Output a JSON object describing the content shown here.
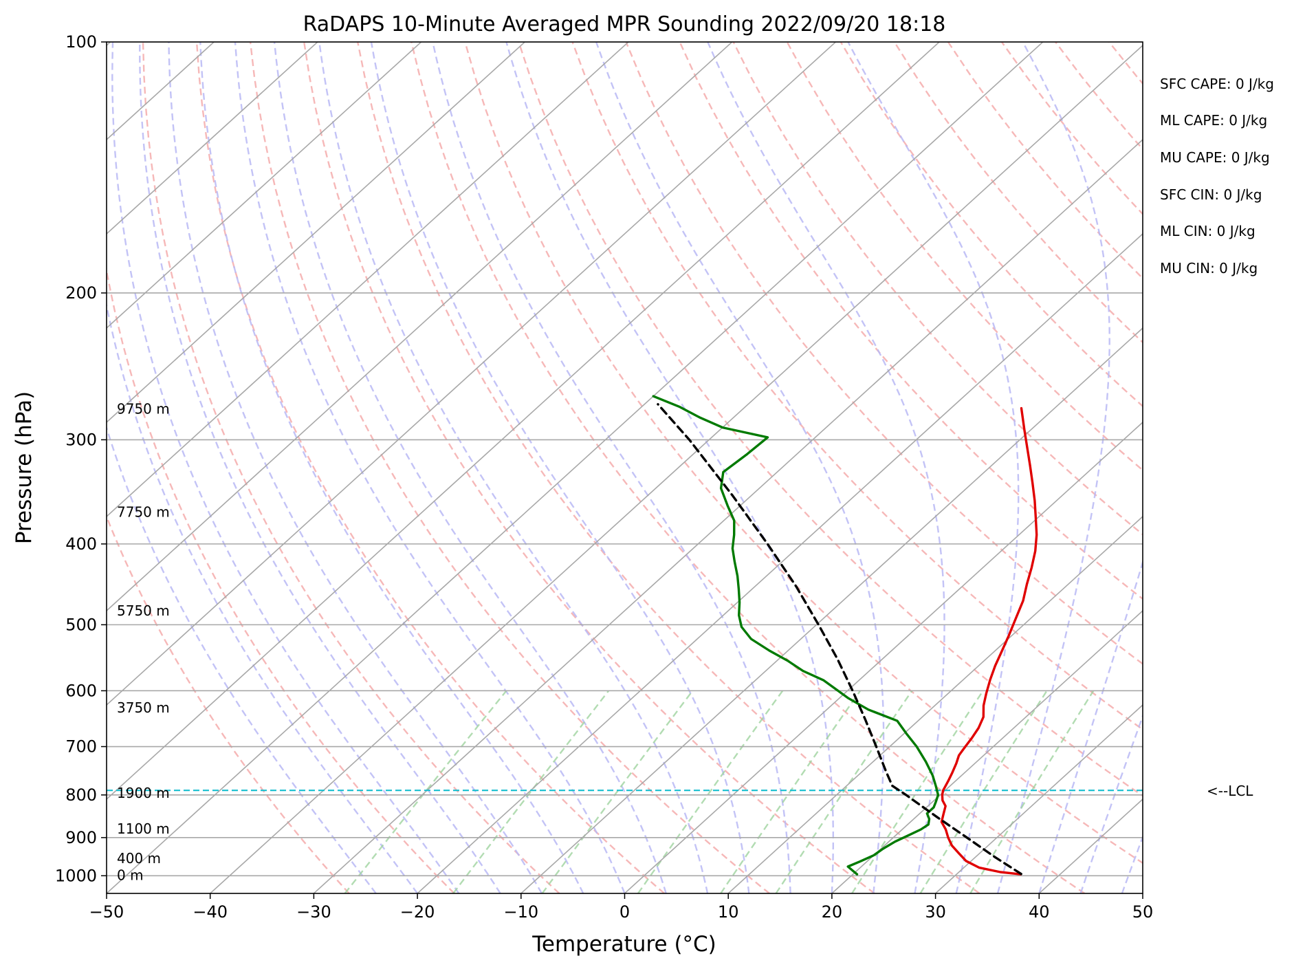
{
  "chart_data": {
    "type": "line",
    "title": "RaDAPS 10-Minute Averaged MPR Sounding 2022/09/20 18:18",
    "xlabel": "Temperature (°C)",
    "ylabel": "Pressure (hPa)",
    "xlim": [
      -50,
      50
    ],
    "ylim": [
      1050,
      100
    ],
    "y_scale": "log",
    "skew": "skew-T",
    "grid": true,
    "x_ticks": [
      "−50",
      "−40",
      "−30",
      "−20",
      "−10",
      "0",
      "10",
      "20",
      "30",
      "40",
      "50"
    ],
    "y_ticks": [
      {
        "p": 100,
        "label": "100"
      },
      {
        "p": 200,
        "label": "200"
      },
      {
        "p": 300,
        "label": "300"
      },
      {
        "p": 400,
        "label": "400"
      },
      {
        "p": 500,
        "label": "500"
      },
      {
        "p": 600,
        "label": "600"
      },
      {
        "p": 700,
        "label": "700"
      },
      {
        "p": 800,
        "label": "800"
      },
      {
        "p": 900,
        "label": "900"
      },
      {
        "p": 1000,
        "label": "1000"
      }
    ],
    "height_labels": [
      {
        "p": 1000,
        "label": "0 m"
      },
      {
        "p": 955,
        "label": "400 m"
      },
      {
        "p": 880,
        "label": "1100 m"
      },
      {
        "p": 797,
        "label": "1900 m"
      },
      {
        "p": 630,
        "label": "3750 m"
      },
      {
        "p": 482,
        "label": "5750 m"
      },
      {
        "p": 367,
        "label": "7750 m"
      },
      {
        "p": 276,
        "label": "9750 m"
      }
    ],
    "lcl": {
      "p": 790,
      "label": "<--LCL",
      "color": "#17becf"
    },
    "stats": [
      "SFC CAPE: 0 J/kg",
      "ML CAPE: 0 J/kg",
      "MU CAPE: 0 J/kg",
      "SFC CIN: 0 J/kg",
      "ML CIN: 0 J/kg",
      "MU CIN: 0 J/kg"
    ],
    "series": [
      {
        "color": "#e00000",
        "points": [
          [
            996,
            36.2
          ],
          [
            990,
            34.0
          ],
          [
            978,
            31.5
          ],
          [
            960,
            29.5
          ],
          [
            940,
            28.0
          ],
          [
            920,
            26.5
          ],
          [
            900,
            25.3
          ],
          [
            880,
            24.2
          ],
          [
            862,
            23.0
          ],
          [
            842,
            22.3
          ],
          [
            825,
            21.7
          ],
          [
            812,
            20.8
          ],
          [
            800,
            20.2
          ],
          [
            790,
            19.8
          ],
          [
            770,
            19.3
          ],
          [
            752,
            18.8
          ],
          [
            733,
            18.2
          ],
          [
            717,
            17.6
          ],
          [
            700,
            17.3
          ],
          [
            683,
            17.0
          ],
          [
            665,
            16.6
          ],
          [
            645,
            15.9
          ],
          [
            625,
            14.7
          ],
          [
            605,
            13.7
          ],
          [
            582,
            12.6
          ],
          [
            560,
            11.6
          ],
          [
            538,
            10.7
          ],
          [
            515,
            9.7
          ],
          [
            492,
            8.6
          ],
          [
            468,
            7.4
          ],
          [
            447,
            6.0
          ],
          [
            427,
            4.7
          ],
          [
            408,
            3.3
          ],
          [
            390,
            1.7
          ],
          [
            372,
            -0.2
          ],
          [
            355,
            -2.1
          ],
          [
            338,
            -4.2
          ],
          [
            322,
            -6.3
          ],
          [
            307,
            -8.4
          ],
          [
            292,
            -10.6
          ],
          [
            275,
            -13.2
          ]
        ]
      },
      {
        "color": "#007a00",
        "points": [
          [
            996,
            20.4
          ],
          [
            975,
            18.7
          ],
          [
            962,
            19.3
          ],
          [
            945,
            20.0
          ],
          [
            928,
            20.2
          ],
          [
            910,
            20.6
          ],
          [
            895,
            21.2
          ],
          [
            880,
            21.8
          ],
          [
            868,
            22.0
          ],
          [
            855,
            21.5
          ],
          [
            842,
            20.7
          ],
          [
            828,
            20.7
          ],
          [
            815,
            20.3
          ],
          [
            800,
            19.8
          ],
          [
            780,
            18.6
          ],
          [
            758,
            17.2
          ],
          [
            730,
            15.1
          ],
          [
            700,
            12.6
          ],
          [
            675,
            10.2
          ],
          [
            652,
            8.0
          ],
          [
            632,
            4.0
          ],
          [
            612,
            0.8
          ],
          [
            598,
            -1.2
          ],
          [
            583,
            -3.4
          ],
          [
            568,
            -6.4
          ],
          [
            552,
            -9.0
          ],
          [
            537,
            -11.8
          ],
          [
            520,
            -14.8
          ],
          [
            503,
            -17.0
          ],
          [
            487,
            -18.5
          ],
          [
            470,
            -19.8
          ],
          [
            453,
            -21.3
          ],
          [
            437,
            -22.8
          ],
          [
            420,
            -24.6
          ],
          [
            405,
            -26.2
          ],
          [
            390,
            -27.5
          ],
          [
            375,
            -29.0
          ],
          [
            360,
            -31.2
          ],
          [
            343,
            -33.7
          ],
          [
            328,
            -35.2
          ],
          [
            312,
            -34.8
          ],
          [
            298,
            -34.6
          ],
          [
            290,
            -40.0
          ],
          [
            282,
            -43.3
          ],
          [
            274,
            -46.3
          ],
          [
            266,
            -50.0
          ]
        ]
      },
      {
        "color": "#000000",
        "dashed": true,
        "points": [
          [
            995,
            36.2
          ],
          [
            950,
            31.9
          ],
          [
            900,
            27.1
          ],
          [
            850,
            22.0
          ],
          [
            800,
            16.7
          ],
          [
            780,
            14.4
          ],
          [
            750,
            12.3
          ],
          [
            700,
            8.7
          ],
          [
            650,
            4.8
          ],
          [
            600,
            0.5
          ],
          [
            550,
            -4.3
          ],
          [
            500,
            -9.8
          ],
          [
            450,
            -16.0
          ],
          [
            400,
            -23.3
          ],
          [
            350,
            -31.8
          ],
          [
            300,
            -41.9
          ],
          [
            272,
            -48.7
          ]
        ]
      }
    ]
  }
}
